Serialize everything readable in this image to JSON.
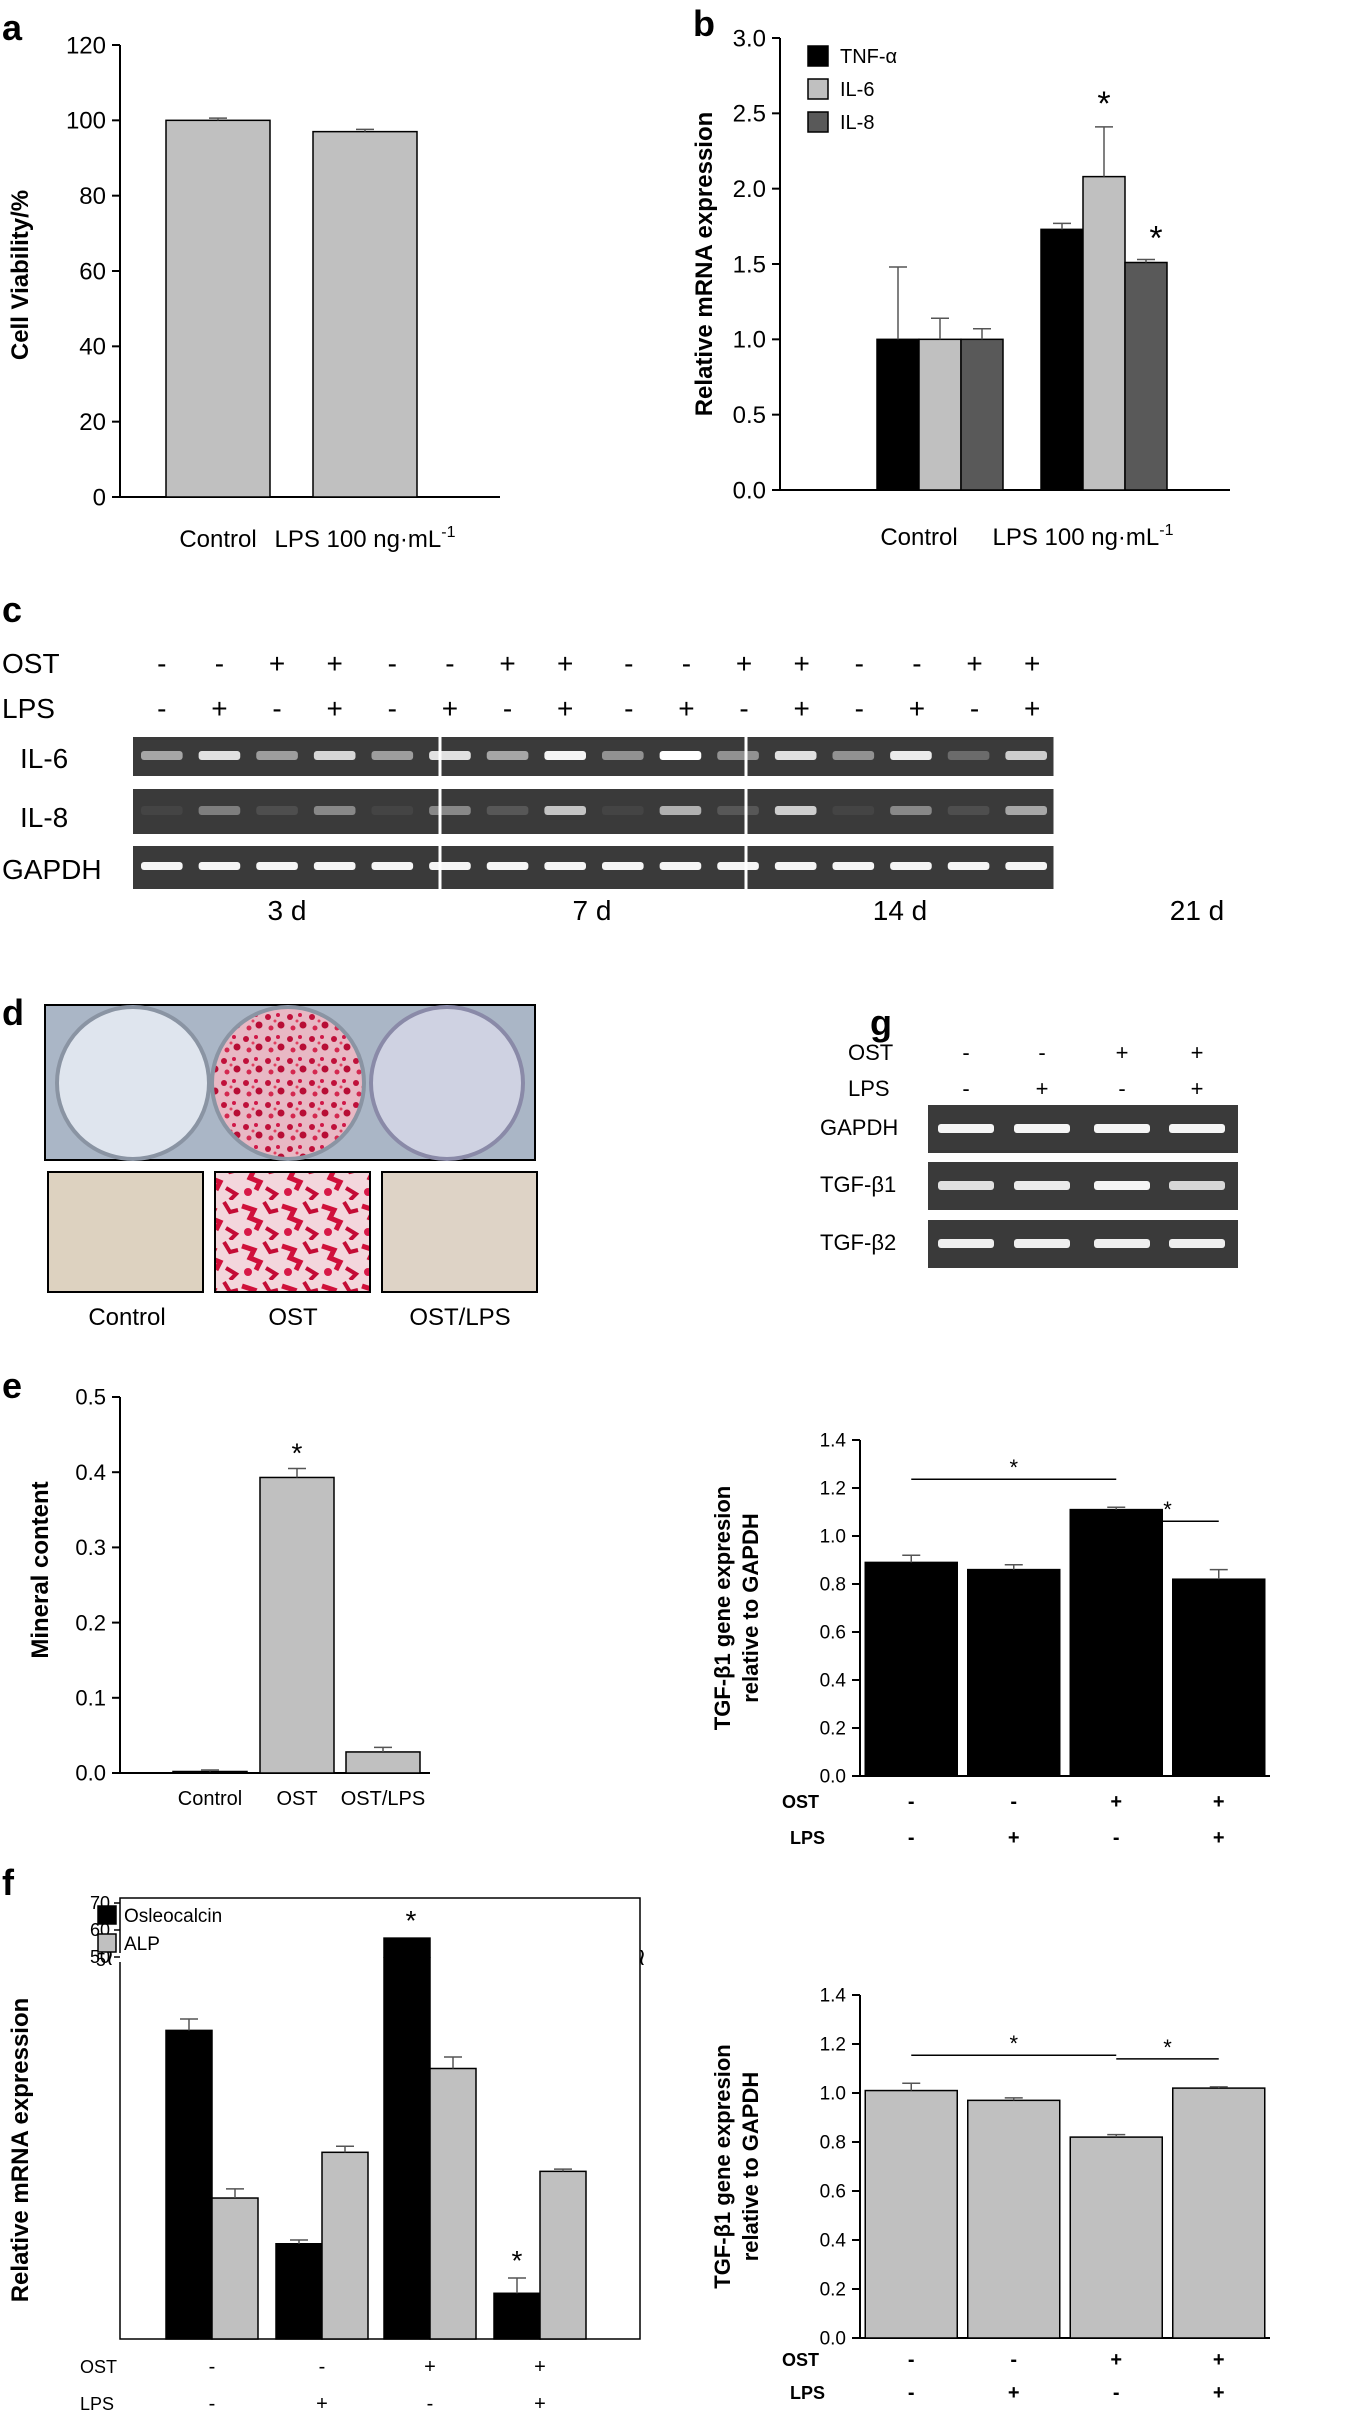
{
  "panels": {
    "a": "a",
    "b": "b",
    "c": "c",
    "d": "d",
    "e": "e",
    "f": "f",
    "g": "g"
  },
  "chart_data": [
    {
      "id": "a",
      "type": "bar",
      "ylabel": "Cell Viability/%",
      "xlabel": "",
      "categories": [
        "Control",
        "LPS 100 ng·mL"
      ],
      "category_superscripts": [
        "",
        "-1"
      ],
      "series": [
        {
          "values": [
            100,
            97
          ],
          "errors": [
            0.6,
            0.6
          ],
          "color": "#c0c0c0"
        }
      ],
      "ylim": [
        0,
        120
      ],
      "yticks": [
        "0",
        "20",
        "40",
        "60",
        "80",
        "100",
        "120"
      ],
      "significance": []
    },
    {
      "id": "b",
      "type": "bar",
      "ylabel": "Relative mRNA expression",
      "categories": [
        "Control",
        "LPS 100 ng·mL"
      ],
      "category_superscripts": [
        "",
        "-1"
      ],
      "series": [
        {
          "name": "TNF-α",
          "values": [
            1.0,
            1.73
          ],
          "errors": [
            0.48,
            0.04
          ],
          "color": "#000000"
        },
        {
          "name": "IL-6",
          "values": [
            1.0,
            2.08
          ],
          "errors": [
            0.14,
            0.33
          ],
          "color": "#c0c0c0"
        },
        {
          "name": "IL-8",
          "values": [
            1.0,
            1.51
          ],
          "errors": [
            0.07,
            0.02
          ],
          "color": "#595959"
        }
      ],
      "ylim": [
        0,
        3.0
      ],
      "yticks": [
        "0.0",
        "0.5",
        "1.0",
        "1.5",
        "2.0",
        "2.5",
        "3.0"
      ],
      "legend_position": "top-left",
      "significance": [
        "*",
        "*"
      ]
    },
    {
      "id": "e",
      "type": "bar",
      "ylabel": "Mineral content",
      "categories": [
        "Control",
        "OST",
        "OST/LPS"
      ],
      "series": [
        {
          "values": [
            0.002,
            0.393,
            0.028
          ],
          "errors": [
            0.002,
            0.012,
            0.006
          ],
          "color": "#c0c0c0"
        }
      ],
      "ylim": [
        0,
        0.5
      ],
      "yticks": [
        "0.0",
        "0.1",
        "0.2",
        "0.3",
        "0.4",
        "0.5"
      ],
      "significance": [
        "*"
      ]
    },
    {
      "id": "g1",
      "type": "bar",
      "ylabel_lines": [
        "TGF-β1 gene expresion",
        "relative to GAPDH"
      ],
      "row_labels": [
        "OST",
        "LPS"
      ],
      "ost": [
        "-",
        "-",
        "+",
        "+"
      ],
      "lps": [
        "-",
        "+",
        "-",
        "+"
      ],
      "series": [
        {
          "values": [
            0.89,
            0.86,
            1.11,
            0.82
          ],
          "errors": [
            0.03,
            0.02,
            0.01,
            0.04
          ],
          "color": "#000000"
        }
      ],
      "ylim": [
        0,
        1.4
      ],
      "yticks": [
        "0.0",
        "0.2",
        "0.4",
        "0.6",
        "0.8",
        "1.0",
        "1.2",
        "1.4"
      ],
      "significance": [
        "*",
        "*"
      ]
    },
    {
      "id": "f",
      "type": "bar",
      "ylabel": "Relative mRNA expression",
      "row_labels": [
        "OST",
        "LPS"
      ],
      "ost": [
        "-",
        "-",
        "+",
        "+"
      ],
      "lps": [
        "-",
        "+",
        "-",
        "+"
      ],
      "series": [
        {
          "name": "Osleocalcin",
          "values": [
            4.05,
            1.25,
            57,
            0.6
          ],
          "errors": [
            0.15,
            0.05,
            0,
            0.2
          ],
          "color": "#000000"
        },
        {
          "name": "ALP",
          "values": [
            1.85,
            2.45,
            3.55,
            2.2
          ],
          "errors": [
            0.12,
            0.08,
            0.15,
            0.03
          ],
          "color": "#c0c0c0"
        }
      ],
      "y_lower_ticks": [
        "5"
      ],
      "y_upper_ticks": [
        "50",
        "60",
        "70"
      ],
      "y_break": true,
      "legend_position": "top-left",
      "significance": [
        "*",
        "*"
      ]
    },
    {
      "id": "g2",
      "type": "bar",
      "ylabel_lines": [
        "TGF-β1 gene expresion",
        "relative to GAPDH"
      ],
      "row_labels": [
        "OST",
        "LPS"
      ],
      "ost": [
        "-",
        "-",
        "+",
        "+"
      ],
      "lps": [
        "-",
        "+",
        "-",
        "+"
      ],
      "series": [
        {
          "values": [
            1.01,
            0.97,
            0.82,
            1.02
          ],
          "errors": [
            0.03,
            0.01,
            0.01,
            0.005
          ],
          "color": "#c0c0c0"
        }
      ],
      "ylim": [
        0,
        1.4
      ],
      "yticks": [
        "0.0",
        "0.2",
        "0.4",
        "0.6",
        "0.8",
        "1.0",
        "1.2",
        "1.4"
      ],
      "significance": [
        "*",
        "*"
      ]
    }
  ],
  "gel_c": {
    "row_labels": [
      "OST",
      "LPS"
    ],
    "ost": [
      "-",
      "-",
      "+",
      "+",
      "-",
      "-",
      "+",
      "+",
      "-",
      "-",
      "+",
      "+",
      "-",
      "-",
      "+",
      "+"
    ],
    "lps": [
      "-",
      "+",
      "-",
      "+",
      "-",
      "+",
      "-",
      "+",
      "-",
      "+",
      "-",
      "+",
      "-",
      "+",
      "-",
      "+"
    ],
    "genes": [
      "IL-6",
      "IL-8",
      "GAPDH"
    ],
    "timepoints": [
      "3 d",
      "7 d",
      "14 d",
      "21 d"
    ]
  },
  "staining_d": {
    "labels": [
      "Control",
      "OST",
      "OST/LPS"
    ]
  },
  "gel_g": {
    "row_labels": [
      "OST",
      "LPS"
    ],
    "ost": [
      "-",
      "-",
      "+",
      "+"
    ],
    "lps": [
      "-",
      "+",
      "-",
      "+"
    ],
    "genes": [
      "GAPDH",
      "TGF-β1",
      "TGF-β2"
    ]
  }
}
